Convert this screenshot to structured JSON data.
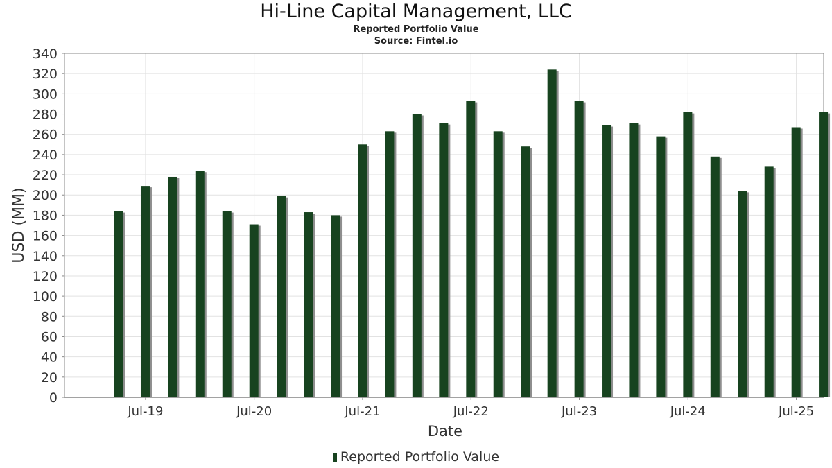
{
  "chart_data": {
    "type": "bar",
    "title": "Hi-Line Capital Management, LLC",
    "subtitle": "Reported Portfolio Value",
    "source": "Source: Fintel.io",
    "xlabel": "Date",
    "ylabel": "USD (MM)",
    "ylim": [
      0,
      340
    ],
    "yticks": [
      0,
      20,
      40,
      60,
      80,
      100,
      120,
      140,
      160,
      180,
      200,
      220,
      240,
      260,
      280,
      300,
      320,
      340
    ],
    "xlim": [
      "2018-10-01",
      "2025-10-01"
    ],
    "xticks": [
      {
        "label": "Jul-19",
        "date": "2019-07-01"
      },
      {
        "label": "Jul-20",
        "date": "2020-07-01"
      },
      {
        "label": "Jul-21",
        "date": "2021-07-01"
      },
      {
        "label": "Jul-22",
        "date": "2022-07-01"
      },
      {
        "label": "Jul-23",
        "date": "2023-07-01"
      },
      {
        "label": "Jul-24",
        "date": "2024-07-01"
      },
      {
        "label": "Jul-25",
        "date": "2025-07-01"
      }
    ],
    "grid": true,
    "legend_position": "bottom",
    "series": [
      {
        "name": "Reported Portfolio Value",
        "color": "#17431f",
        "points": [
          {
            "date": "2019-03-31",
            "value": 184
          },
          {
            "date": "2019-06-30",
            "value": 209
          },
          {
            "date": "2019-09-30",
            "value": 218
          },
          {
            "date": "2019-12-31",
            "value": 224
          },
          {
            "date": "2020-03-31",
            "value": 184
          },
          {
            "date": "2020-06-30",
            "value": 171
          },
          {
            "date": "2020-09-30",
            "value": 199
          },
          {
            "date": "2020-12-31",
            "value": 183
          },
          {
            "date": "2021-03-31",
            "value": 180
          },
          {
            "date": "2021-06-30",
            "value": 250
          },
          {
            "date": "2021-09-30",
            "value": 263
          },
          {
            "date": "2021-12-31",
            "value": 280
          },
          {
            "date": "2022-03-31",
            "value": 271
          },
          {
            "date": "2022-06-30",
            "value": 293
          },
          {
            "date": "2022-09-30",
            "value": 263
          },
          {
            "date": "2022-12-31",
            "value": 248
          },
          {
            "date": "2023-03-31",
            "value": 324
          },
          {
            "date": "2023-06-30",
            "value": 293
          },
          {
            "date": "2023-09-30",
            "value": 269
          },
          {
            "date": "2023-12-31",
            "value": 271
          },
          {
            "date": "2024-03-31",
            "value": 258
          },
          {
            "date": "2024-06-30",
            "value": 282
          },
          {
            "date": "2024-09-30",
            "value": 238
          },
          {
            "date": "2024-12-31",
            "value": 204
          },
          {
            "date": "2025-03-31",
            "value": 228
          },
          {
            "date": "2025-06-30",
            "value": 267
          },
          {
            "date": "2025-09-30",
            "value": 282
          }
        ]
      }
    ]
  }
}
